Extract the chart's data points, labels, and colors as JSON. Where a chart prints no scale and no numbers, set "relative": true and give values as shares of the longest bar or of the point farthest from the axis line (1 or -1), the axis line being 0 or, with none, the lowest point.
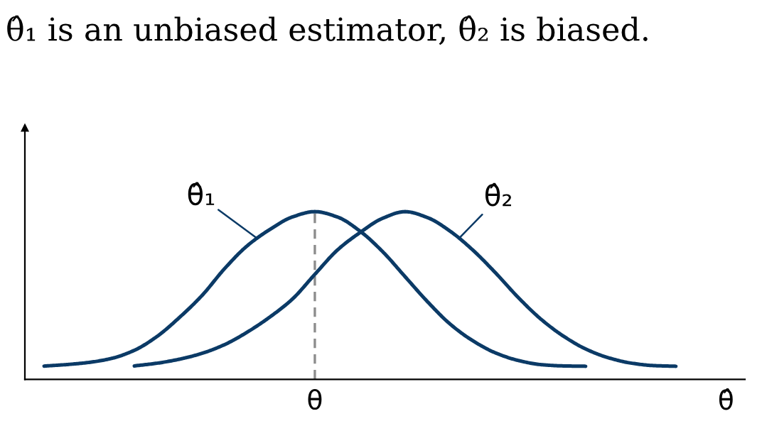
{
  "chart_data": {
    "type": "line",
    "title": "θ̂₁ is an unbiased estimator, θ̂₂ is biased.",
    "xlabel": "θ̂",
    "relative": true,
    "line_style": "solid",
    "categories": [
      null,
      null,
      null,
      null,
      null,
      null,
      null,
      null,
      null,
      null,
      null,
      null,
      null,
      null,
      null,
      null,
      null,
      null,
      null,
      null,
      null,
      null,
      null,
      null,
      null,
      null,
      null,
      null,
      null,
      null,
      null,
      null
    ],
    "annotations": [
      "θ"
    ],
    "series": [
      {
        "name": "θ̂₁",
        "color": "#0b3a66",
        "values": [
          0.079,
          0.088,
          0.101,
          0.125,
          0.173,
          0.255,
          0.369,
          0.5,
          0.66,
          0.796,
          0.893,
          0.968,
          1.0,
          0.968,
          0.884,
          0.762,
          0.612,
          0.462,
          0.329,
          0.23,
          0.158,
          0.113,
          0.088,
          0.08,
          0.078,
          null,
          null,
          null,
          null,
          null,
          null,
          null
        ]
      },
      {
        "name": "θ̂₂",
        "color": "#0b3a66",
        "values": [
          null,
          null,
          null,
          null,
          0.08,
          0.096,
          0.12,
          0.155,
          0.207,
          0.281,
          0.371,
          0.478,
          0.626,
          0.771,
          0.875,
          0.96,
          1.0,
          0.964,
          0.883,
          0.771,
          0.636,
          0.49,
          0.361,
          0.259,
          0.181,
          0.129,
          0.097,
          0.082,
          0.078,
          null,
          null,
          null
        ]
      }
    ]
  }
}
